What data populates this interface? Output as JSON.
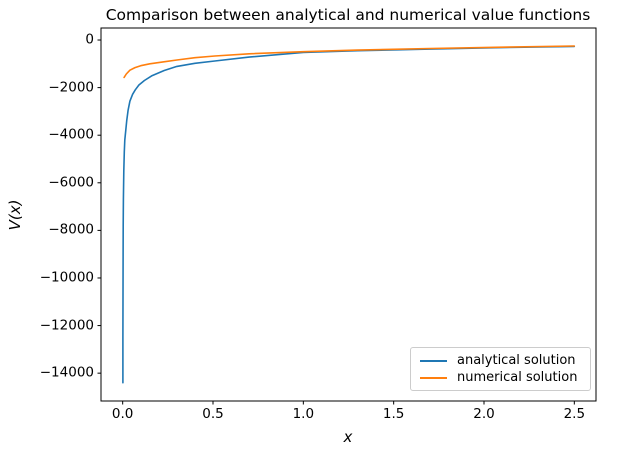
{
  "chart_data": {
    "type": "line",
    "title": "Comparison between analytical and numerical value functions",
    "xlabel": "x",
    "ylabel": "V(x)",
    "xlim": [
      -0.12,
      2.62
    ],
    "ylim": [
      -15170,
      505
    ],
    "xticks": [
      0.0,
      0.5,
      1.0,
      1.5,
      2.0,
      2.5
    ],
    "xtick_labels": [
      "0.0",
      "0.5",
      "1.0",
      "1.5",
      "2.0",
      "2.5"
    ],
    "yticks": [
      0,
      -2000,
      -4000,
      -6000,
      -8000,
      -10000,
      -12000,
      -14000
    ],
    "ytick_labels": [
      "0",
      "−2000",
      "−4000",
      "−6000",
      "−8000",
      "−10000",
      "−12000",
      "−14000"
    ],
    "grid": false,
    "legend": {
      "location": "lower right"
    },
    "series": [
      {
        "id": "analytical",
        "name": "analytical solution",
        "color": "#1f77b4",
        "x": [
          0.001,
          0.0013,
          0.0017,
          0.0022,
          0.003,
          0.004,
          0.006,
          0.009,
          0.012,
          0.017,
          0.022,
          0.03,
          0.04,
          0.055,
          0.07,
          0.09,
          0.12,
          0.16,
          0.23,
          0.3,
          0.4,
          0.51,
          0.7,
          1.0,
          1.3,
          1.7,
          2.1,
          2.5
        ],
        "values": [
          -14400,
          -12500,
          -10800,
          -9200,
          -7800,
          -6700,
          -5500,
          -4700,
          -4200,
          -3780,
          -3400,
          -2950,
          -2570,
          -2280,
          -2090,
          -1890,
          -1700,
          -1510,
          -1280,
          -1110,
          -980,
          -880,
          -720,
          -520,
          -450,
          -380,
          -320,
          -270
        ]
      },
      {
        "id": "numerical",
        "name": "numerical solution",
        "color": "#ff7f0e",
        "x": [
          0.008,
          0.02,
          0.04,
          0.068,
          0.1,
          0.15,
          0.233,
          0.3,
          0.4,
          0.51,
          0.7,
          1.0,
          1.3,
          1.7,
          2.1,
          2.5
        ],
        "values": [
          -1570,
          -1430,
          -1270,
          -1160,
          -1080,
          -1000,
          -910,
          -840,
          -743,
          -672,
          -580,
          -490,
          -425,
          -355,
          -300,
          -252
        ]
      }
    ]
  }
}
